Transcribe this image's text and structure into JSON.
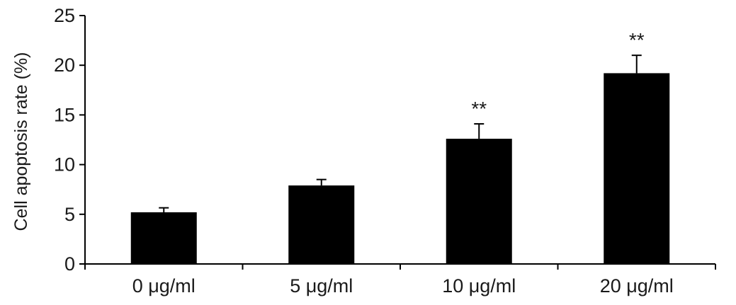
{
  "chart_data": {
    "type": "bar",
    "categories": [
      "0 μg/ml",
      "5 μg/ml",
      "10 μg/ml",
      "20 μg/ml"
    ],
    "values": [
      5.2,
      7.9,
      12.6,
      19.2
    ],
    "errors": [
      0.45,
      0.6,
      1.5,
      1.8
    ],
    "significance": [
      "",
      "",
      "**",
      "**"
    ],
    "ylabel": "Cell apoptosis rate (%)",
    "ylim": [
      0,
      25
    ],
    "yticks": [
      0,
      5,
      10,
      15,
      20,
      25
    ],
    "grid": false,
    "bar_color": "#000000"
  }
}
